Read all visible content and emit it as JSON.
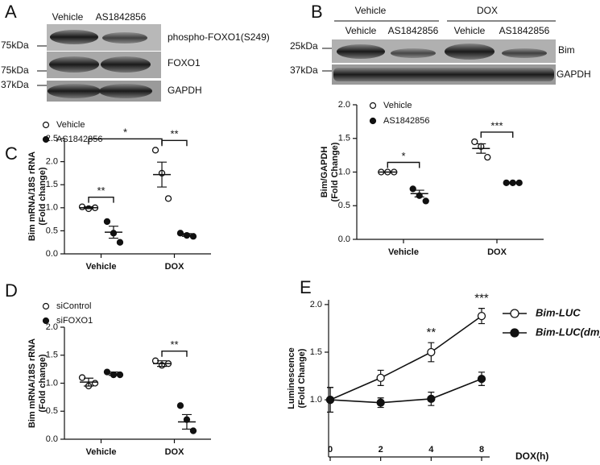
{
  "panel_labels": [
    "A",
    "B",
    "C",
    "D",
    "E"
  ],
  "blots": {
    "A": {
      "columns": [
        "Vehicle",
        "AS1842856"
      ],
      "rows": [
        {
          "marker": "75kDa",
          "label": "phospho-FOXO1(S249)"
        },
        {
          "marker": "75kDa",
          "label": "FOXO1"
        },
        {
          "marker": "37kDa",
          "label": "GAPDH"
        }
      ]
    },
    "B": {
      "groups": [
        "Vehicle",
        "DOX"
      ],
      "columns": [
        "Vehicle",
        "AS1842856",
        "Vehicle",
        "AS1842856"
      ],
      "rows": [
        {
          "marker": "25kDa",
          "label": "Bim"
        },
        {
          "marker": "37kDa",
          "label": "GAPDH"
        }
      ]
    }
  },
  "chart_data": [
    {
      "type": "dot",
      "ylabel": [
        "Bim/GAPDH",
        "(Fold Change)"
      ],
      "categories": [
        "Vehicle",
        "DOX"
      ],
      "series": [
        {
          "name": "Vehicle",
          "marker": "open",
          "color": "#111111",
          "points": [
            [
              1.0,
              1.0,
              1.0
            ],
            [
              1.45,
              1.38,
              1.22
            ]
          ],
          "values": [
            1.0,
            1.35
          ],
          "errors": [
            0.0,
            0.07
          ]
        },
        {
          "name": "AS1842856",
          "marker": "filled",
          "color": "#111111",
          "points": [
            [
              0.75,
              0.65,
              0.57
            ],
            [
              0.84,
              0.84,
              0.84
            ]
          ],
          "values": [
            0.68,
            0.84
          ],
          "errors": [
            0.05,
            0.01
          ]
        }
      ],
      "ylim": [
        0,
        2
      ],
      "yticks": [
        {
          "value": 0,
          "label": "0.0"
        },
        0.5,
        {
          "value": 1,
          "label": "1.0"
        },
        1.5,
        {
          "value": 2,
          "label": "2.0"
        }
      ],
      "annotations": [
        {
          "text": "*",
          "from": [
            0,
            0
          ],
          "to": [
            0,
            1
          ]
        },
        {
          "text": "***",
          "from": [
            1,
            0
          ],
          "to": [
            1,
            1
          ]
        }
      ]
    },
    {
      "type": "dot",
      "ylabel": [
        "Bim mRNA/18S rRNA",
        "(Fold change)"
      ],
      "categories": [
        "Vehicle",
        "DOX"
      ],
      "series": [
        {
          "name": "Vehicle",
          "marker": "open",
          "color": "#111111",
          "points": [
            [
              1.02,
              0.98,
              1.0
            ],
            [
              2.25,
              1.75,
              1.2
            ]
          ],
          "values": [
            1.0,
            1.72
          ],
          "errors": [
            0.02,
            0.27
          ]
        },
        {
          "name": "AS1842856",
          "marker": "filled",
          "color": "#111111",
          "points": [
            [
              0.7,
              0.45,
              0.25
            ],
            [
              0.45,
              0.4,
              0.38
            ]
          ],
          "values": [
            0.47,
            0.41
          ],
          "errors": [
            0.13,
            0.03
          ]
        }
      ],
      "ylim": [
        0,
        2.5
      ],
      "yticks": [
        {
          "value": 0,
          "label": "0.0"
        },
        0.5,
        {
          "value": 1,
          "label": "1.0"
        },
        1.5,
        {
          "value": 2,
          "label": "2.0"
        },
        2.5
      ],
      "annotations": [
        {
          "text": "**",
          "from": [
            0,
            0
          ],
          "to": [
            0,
            1
          ]
        },
        {
          "text": "**",
          "from": [
            1,
            0
          ],
          "to": [
            1,
            1
          ]
        },
        {
          "text": "*",
          "from": [
            0,
            0
          ],
          "to": [
            1,
            0
          ]
        }
      ]
    },
    {
      "type": "dot",
      "ylabel": [
        "Bim mRNA/18S rRNA",
        "(Fold change)"
      ],
      "categories": [
        "Vehicle",
        "DOX"
      ],
      "series": [
        {
          "name": "siControl",
          "marker": "open",
          "color": "#111111",
          "points": [
            [
              1.1,
              0.95,
              1.0
            ],
            [
              1.4,
              1.32,
              1.35
            ]
          ],
          "values": [
            1.02,
            1.35
          ],
          "errors": [
            0.07,
            0.05
          ]
        },
        {
          "name": "siFOXO1",
          "marker": "filled",
          "color": "#111111",
          "points": [
            [
              1.2,
              1.15,
              1.15
            ],
            [
              0.6,
              0.35,
              0.15
            ]
          ],
          "values": [
            1.17,
            0.31
          ],
          "errors": [
            0.03,
            0.13
          ]
        }
      ],
      "ylim": [
        0,
        2
      ],
      "yticks": [
        {
          "value": 0,
          "label": "0.0"
        },
        0.5,
        {
          "value": 1,
          "label": "1.0"
        },
        1.5,
        {
          "value": 2,
          "label": "2.0"
        }
      ],
      "annotations": [
        {
          "text": "**",
          "from": [
            1,
            0
          ],
          "to": [
            1,
            1
          ]
        }
      ]
    },
    {
      "type": "line",
      "ylabel": [
        "Luminescence",
        "(Fold Change)"
      ],
      "xlabel": "DOX(h)",
      "categories": [
        "0",
        "2",
        "4",
        "8"
      ],
      "series": [
        {
          "name": "Bim-LUC",
          "marker": "open",
          "color": "#111111",
          "values": [
            1.0,
            1.23,
            1.5,
            1.88
          ],
          "errors": [
            0.13,
            0.08,
            0.1,
            0.08
          ]
        },
        {
          "name": "Bim-LUC(dm)",
          "marker": "filled",
          "color": "#111111",
          "values": [
            1.0,
            0.97,
            1.01,
            1.22
          ],
          "errors": [
            0.13,
            0.05,
            0.07,
            0.07
          ]
        }
      ],
      "ylim": [
        0.4,
        2.05
      ],
      "yticks": [
        {
          "value": 1,
          "label": "1.0"
        },
        1.5,
        {
          "value": 2,
          "label": "2.0"
        }
      ],
      "annotations": [
        {
          "text": "**",
          "category": 2
        },
        {
          "text": "***",
          "category": 3
        }
      ]
    }
  ]
}
